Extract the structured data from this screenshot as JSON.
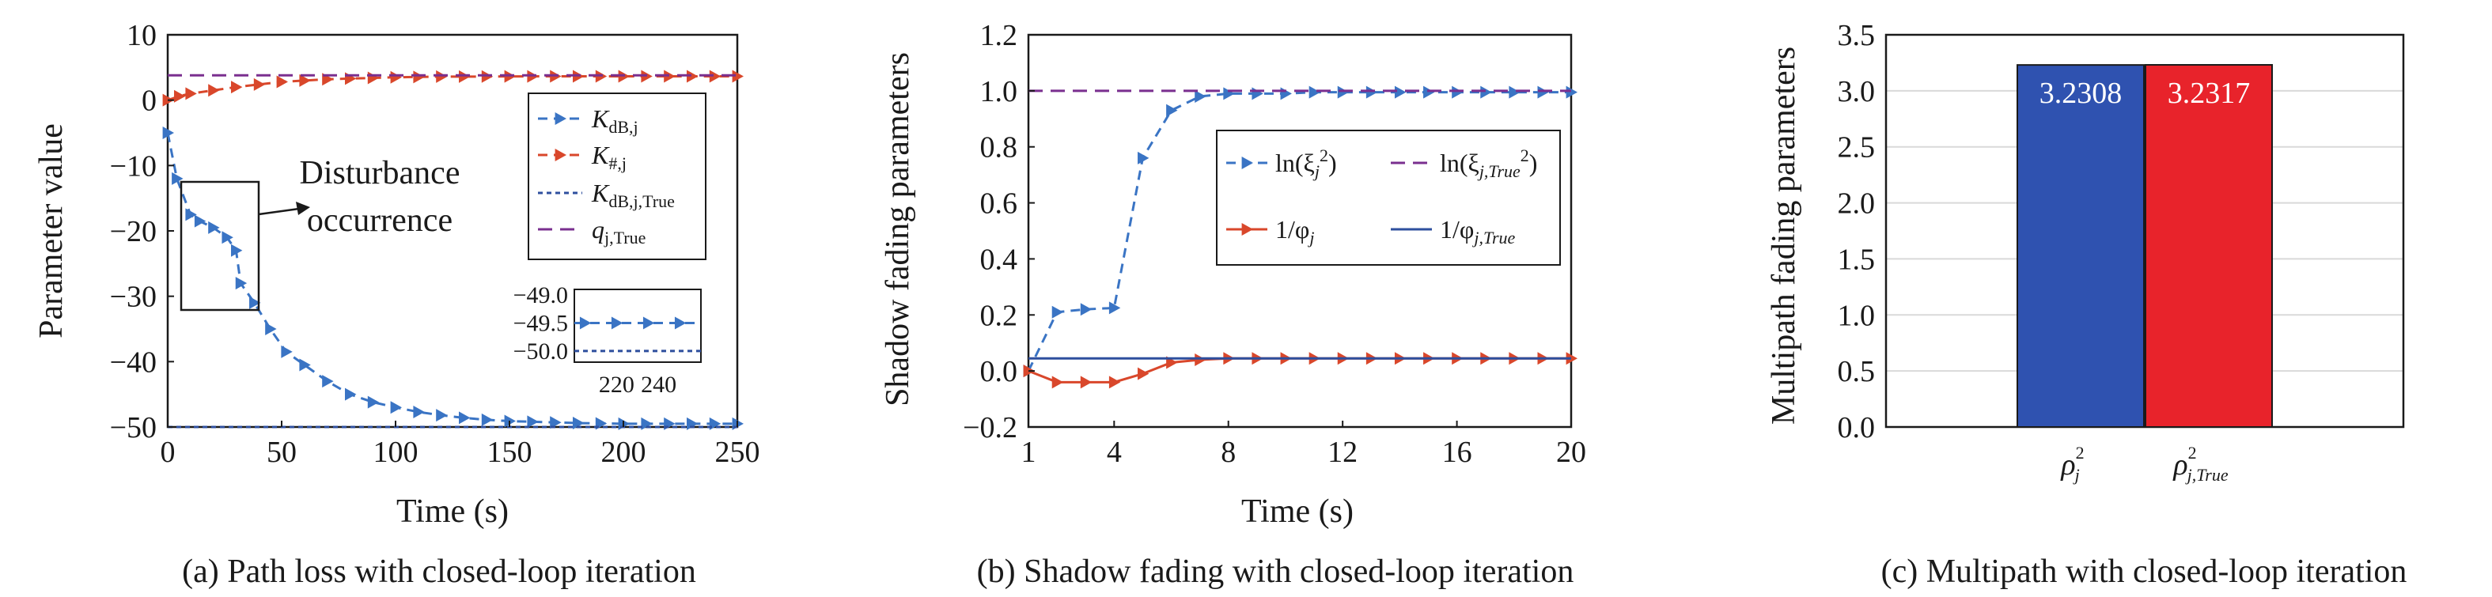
{
  "captions": {
    "a": "(a) Path loss with closed-loop iteration",
    "b": "(b) Shadow fading with closed-loop iteration",
    "c": "(c) Multipath with closed-loop iteration"
  },
  "annotation": {
    "line1": "Disturbance",
    "line2": "occurrence"
  },
  "colors": {
    "blue": "#3a74c4",
    "orange": "#d9472b",
    "navy": "#2e4f9e",
    "purple": "#7a2f8f",
    "bar_blue": "#2f52b0",
    "bar_red": "#e8232b"
  },
  "chart_data": [
    {
      "id": "a",
      "type": "line",
      "xlabel": "Time (s)",
      "ylabel": "Parameter value",
      "xlim": [
        0,
        250
      ],
      "ylim": [
        -50,
        10
      ],
      "xticks": [
        "0",
        "50",
        "100",
        "150",
        "200",
        "250"
      ],
      "yticks": [
        "10",
        "0",
        "−10",
        "−20",
        "−30",
        "−40",
        "−50"
      ],
      "legend_position": "right",
      "series": [
        {
          "name": "K",
          "sub": "dB,j",
          "style": "dashed-triangle",
          "color": "#3a74c4",
          "x": [
            0,
            4,
            10,
            14,
            20,
            26,
            30,
            32,
            38,
            45,
            52,
            60,
            70,
            80,
            90,
            100,
            110,
            120,
            130,
            140,
            150,
            160,
            170,
            180,
            190,
            200,
            210,
            220,
            230,
            240,
            250
          ],
          "y": [
            -5,
            -12,
            -17.5,
            -18.5,
            -19.5,
            -21,
            -23,
            -28,
            -31,
            -35,
            -38.5,
            -40.5,
            -43,
            -45,
            -46.2,
            -47,
            -47.7,
            -48.2,
            -48.6,
            -48.9,
            -49.1,
            -49.2,
            -49.3,
            -49.4,
            -49.45,
            -49.5,
            -49.5,
            -49.5,
            -49.5,
            -49.5,
            -49.5
          ]
        },
        {
          "name": "K",
          "sub": "#,j",
          "style": "dashed-triangle",
          "color": "#d9472b",
          "x": [
            0,
            5,
            10,
            20,
            30,
            40,
            50,
            60,
            70,
            80,
            90,
            100,
            110,
            120,
            130,
            140,
            150,
            160,
            170,
            180,
            190,
            200,
            210,
            220,
            230,
            240,
            250
          ],
          "y": [
            0,
            0.6,
            1.0,
            1.5,
            2.0,
            2.4,
            2.8,
            3.0,
            3.2,
            3.3,
            3.4,
            3.5,
            3.55,
            3.6,
            3.6,
            3.62,
            3.63,
            3.64,
            3.65,
            3.65,
            3.65,
            3.65,
            3.65,
            3.65,
            3.65,
            3.65,
            3.65
          ]
        },
        {
          "name": "K",
          "sub": "dB,j,True",
          "style": "short-dash",
          "color": "#2e4f9e",
          "x": [
            0,
            250
          ],
          "y": [
            -50,
            -50
          ]
        },
        {
          "name": "q",
          "sub": "j,True",
          "style": "long-dash",
          "color": "#7a2f8f",
          "x": [
            0,
            250
          ],
          "y": [
            3.8,
            3.8
          ]
        }
      ],
      "inset": {
        "xlim": [
          200,
          260
        ],
        "ylim": [
          -50.2,
          -48.9
        ],
        "xticks": [
          "220",
          "240"
        ],
        "yticks": [
          "−49.0",
          "−49.5",
          "−50.0"
        ],
        "measured_level": -49.5,
        "true_level": -50.0
      }
    },
    {
      "id": "b",
      "type": "line",
      "xlabel": "Time (s)",
      "ylabel": "Shadow fading parameters",
      "xlim": [
        1,
        20
      ],
      "ylim": [
        -0.2,
        1.2
      ],
      "xticks": [
        "1",
        "4",
        "8",
        "12",
        "16",
        "20"
      ],
      "yticks": [
        "1.2",
        "1.0",
        "0.8",
        "0.6",
        "0.4",
        "0.2",
        "0.0",
        "−0.2"
      ],
      "legend_position": "center",
      "series": [
        {
          "name": "ln(ξ",
          "sub": "j",
          "sup": "2",
          "close": ")",
          "style": "dashed-triangle",
          "color": "#3a74c4",
          "x": [
            1,
            2,
            3,
            4,
            5,
            6,
            7,
            8,
            9,
            10,
            11,
            12,
            13,
            14,
            15,
            16,
            17,
            18,
            19,
            20
          ],
          "y": [
            0.0,
            0.21,
            0.22,
            0.225,
            0.76,
            0.93,
            0.98,
            0.99,
            0.99,
            0.99,
            0.995,
            0.995,
            0.995,
            0.995,
            0.995,
            0.995,
            0.995,
            0.995,
            0.995,
            0.995
          ]
        },
        {
          "name": "ln(ξ",
          "sub": "j,True",
          "sup": "2",
          "close": ")",
          "style": "long-dash",
          "color": "#7a2f8f",
          "x": [
            1,
            20
          ],
          "y": [
            1.0,
            1.0
          ]
        },
        {
          "name": "1/φ",
          "sub": "j",
          "style": "solid-triangle",
          "color": "#d9472b",
          "x": [
            1,
            2,
            3,
            4,
            5,
            6,
            7,
            8,
            9,
            10,
            11,
            12,
            13,
            14,
            15,
            16,
            17,
            18,
            19,
            20
          ],
          "y": [
            0.0,
            -0.04,
            -0.04,
            -0.04,
            -0.01,
            0.03,
            0.04,
            0.045,
            0.045,
            0.045,
            0.045,
            0.045,
            0.045,
            0.045,
            0.045,
            0.045,
            0.045,
            0.045,
            0.045,
            0.045
          ]
        },
        {
          "name": "1/φ",
          "sub": "j,True",
          "style": "solid",
          "color": "#2e4f9e",
          "x": [
            1,
            20
          ],
          "y": [
            0.045,
            0.045
          ]
        }
      ]
    },
    {
      "id": "c",
      "type": "bar",
      "ylabel": "Multipath fading parameters",
      "ylim": [
        0,
        3.5
      ],
      "yticks": [
        "3.5",
        "3.0",
        "2.5",
        "2.0",
        "1.5",
        "1.0",
        "0.5",
        "0.0"
      ],
      "categories": [
        {
          "base": "ρ",
          "sub": "j",
          "sup": "2"
        },
        {
          "base": "ρ",
          "sub": "j,True",
          "sup": "2"
        }
      ],
      "values": [
        3.2308,
        3.2317
      ],
      "value_labels": [
        "3.2308",
        "3.2317"
      ],
      "bar_colors": [
        "#2f52b0",
        "#e8232b"
      ]
    }
  ]
}
